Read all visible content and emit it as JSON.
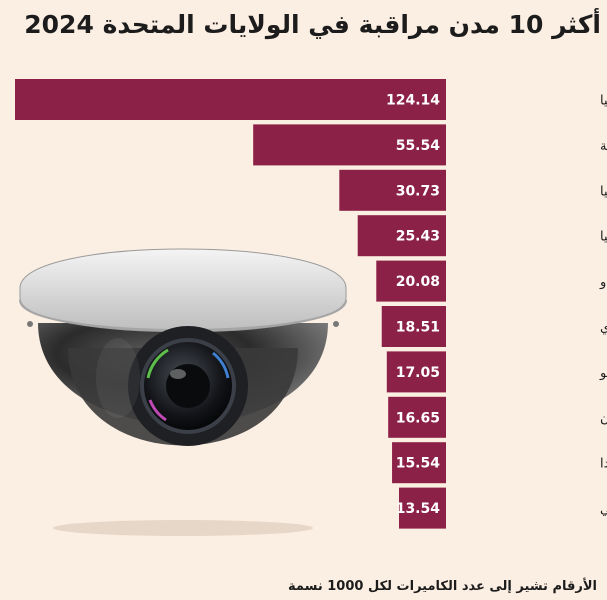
{
  "colors": {
    "background": "#fbeee2",
    "bar": "#8c2147",
    "value_text": "#ffffff",
    "label_text": "#1c1c1c"
  },
  "chart_data": {
    "type": "bar",
    "orientation": "horizontal",
    "title": "أكثر 10 مدن مراقبة في الولايات المتحدة 2024",
    "categories": [
      "أتلانتا، جورجيا",
      "واشنطن العاصمة",
      "فيلادلفيا، بنسلفانيا",
      "سان فرانسيسكو، كاليفورنيا",
      "دنفر، كولورادو",
      "شيكاغو، إلينوي",
      "ألبوكيرك، نيو مكسيكو",
      "ديترويت، ميشيغان",
      "لاس فيغاس، نيفادا",
      "ممفيس، تينيسي"
    ],
    "values": [
      124.14,
      55.54,
      30.73,
      25.43,
      20.08,
      18.51,
      17.05,
      16.65,
      15.54,
      13.54
    ],
    "value_labels": [
      "124.14",
      "55.54",
      "30.73",
      "25.43",
      "20.08",
      "18.51",
      "17.05",
      "16.65",
      "15.54",
      "13.54"
    ],
    "footnote": "الأرقام تشير إلى عدد الكاميرات لكل 1000 نسمة"
  }
}
